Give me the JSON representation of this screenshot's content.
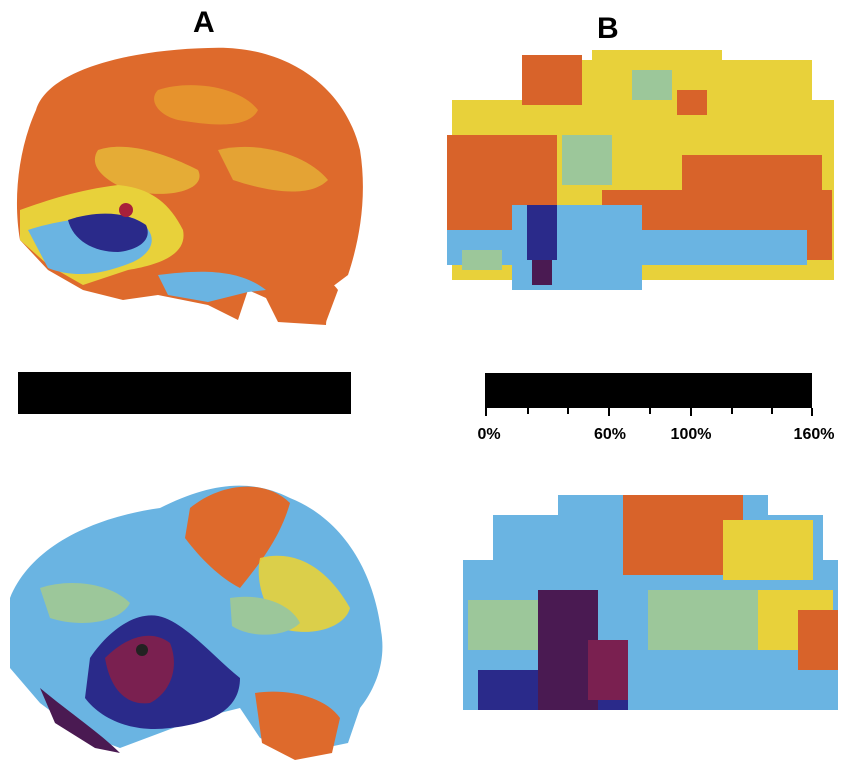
{
  "labels": {
    "a": "A",
    "b": "B"
  },
  "scale": {
    "ticks": [
      "0%",
      "60%",
      "100%",
      "160%"
    ],
    "colors": [
      "#4a1a52",
      "#2a2a8a",
      "#3a8fd8",
      "#6ab4e2",
      "#9cc79a",
      "#e8d13a",
      "#e79a2e",
      "#d8632a"
    ]
  },
  "panels": [
    {
      "name": "A-top",
      "level": "high"
    },
    {
      "name": "B-top",
      "level": "high"
    },
    {
      "name": "A-bottom",
      "level": "low"
    },
    {
      "name": "B-bottom",
      "level": "low"
    }
  ]
}
